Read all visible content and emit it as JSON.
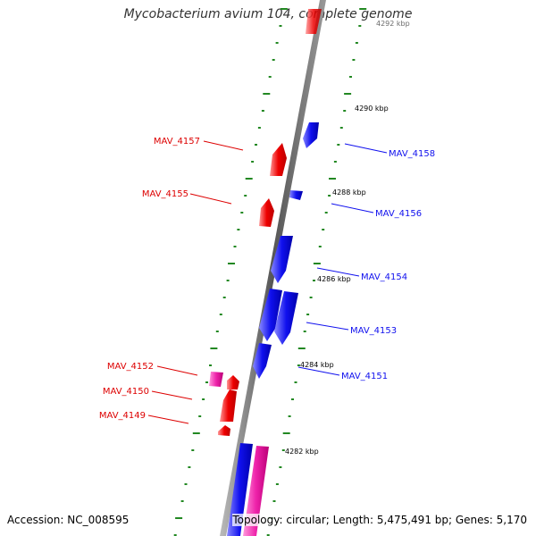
{
  "title": "Mycobacterium avium 104, complete genome",
  "footer": {
    "accession": "Accession: NC_008595",
    "topology": "Topology: circular; Length: 5,475,491 bp; Genes: 5,170"
  },
  "colors": {
    "forward_gene": "#ee0000",
    "reverse_gene": "#1010ee",
    "pseudo_gene": "#ee22aa",
    "tick": "#228822",
    "backbone": "#888888"
  },
  "kbp_marks": [
    "4292 kbp",
    "4290 kbp",
    "4288 kbp",
    "4286 kbp",
    "4284 kbp",
    "4282 kbp"
  ],
  "genes_forward": [
    "MAV_4157",
    "MAV_4155",
    "MAV_4152",
    "MAV_4150",
    "MAV_4149"
  ],
  "genes_reverse": [
    "MAV_4158",
    "MAV_4156",
    "MAV_4154",
    "MAV_4153",
    "MAV_4151"
  ]
}
